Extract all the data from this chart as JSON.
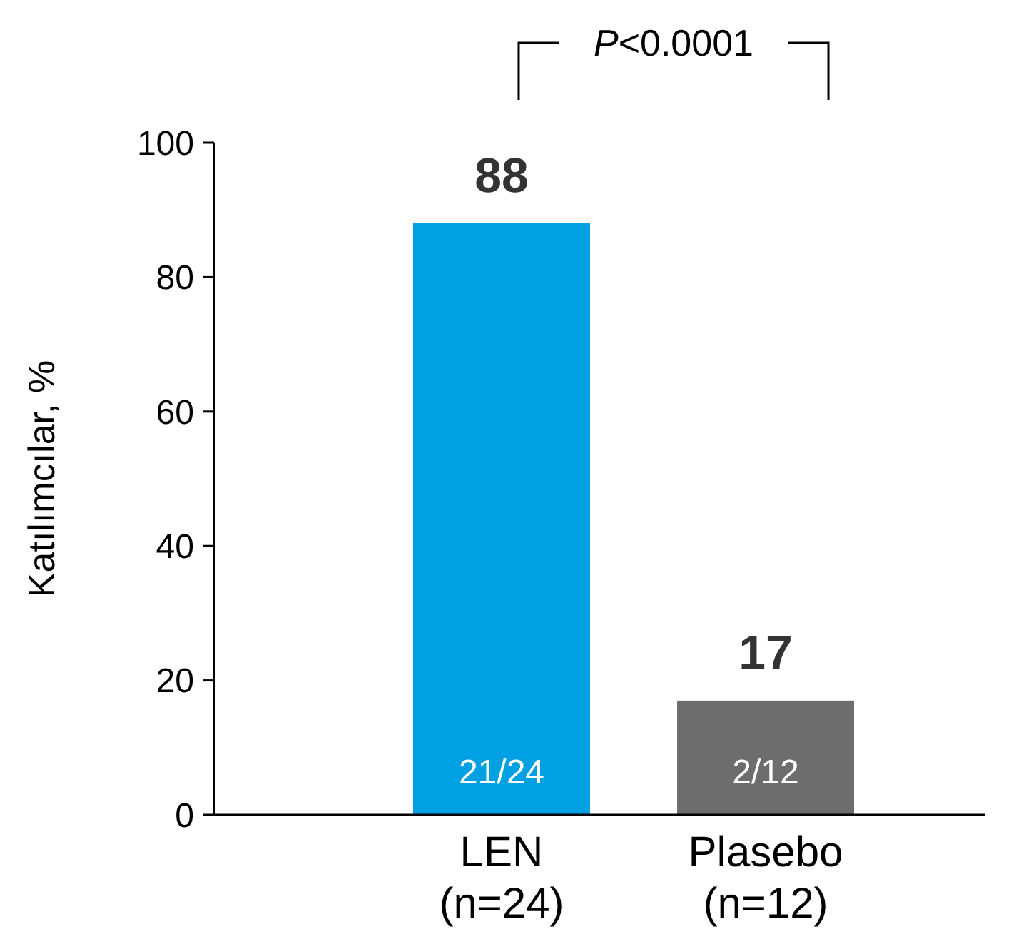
{
  "chart_data": {
    "type": "bar",
    "ylabel": "Katılımcılar, %",
    "categories": [
      "LEN\n(n=24)",
      "Plasebo\n(n=12)"
    ],
    "values": [
      88,
      17
    ],
    "colors": [
      "#00a0e3",
      "#6d6d6d"
    ],
    "ylim": [
      0,
      100
    ],
    "yticks": [
      0,
      20,
      40,
      60,
      80,
      100
    ],
    "data_labels": true,
    "annotations": [
      "P<0.0001",
      "21/24",
      "2/12"
    ]
  }
}
